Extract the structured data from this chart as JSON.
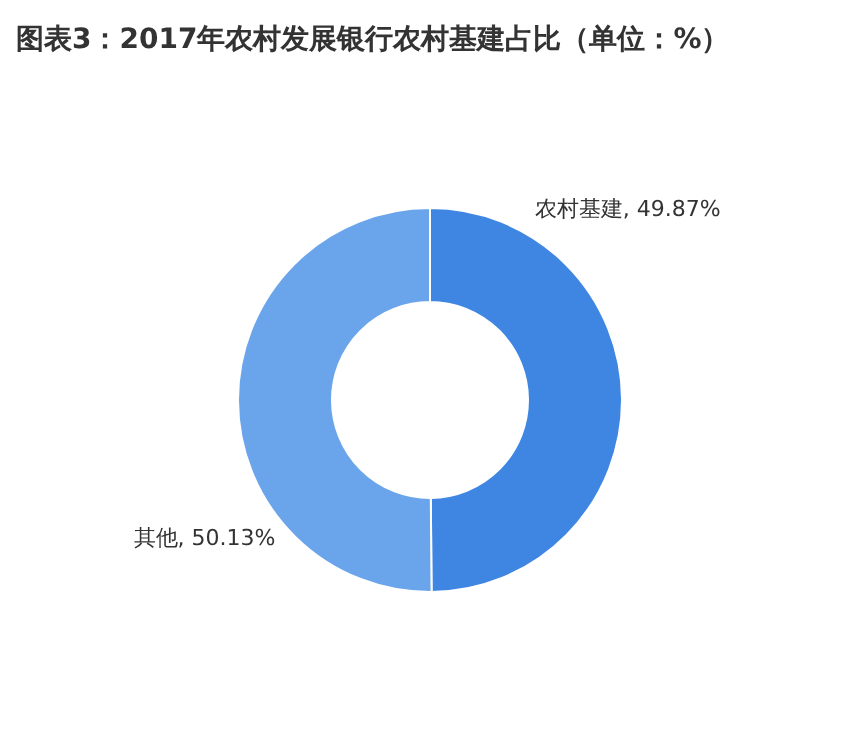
{
  "chart_data": {
    "type": "donut",
    "title": "图表3：2017年农村发展银行农村基建占比（单位：%）",
    "categories": [
      "农村基建",
      "其他"
    ],
    "values": [
      49.87,
      50.13
    ],
    "colors": [
      "#3f86e2",
      "#6aa5eb"
    ],
    "value_labels": [
      ", 49.87%",
      ", 50.13%"
    ]
  }
}
